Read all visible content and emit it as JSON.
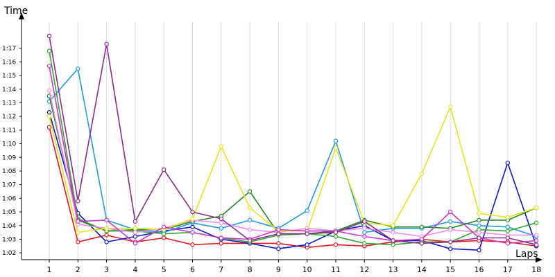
{
  "chart_data": {
    "type": "line",
    "xlabel": "Laps",
    "ylabel": "Time",
    "x": [
      1,
      2,
      3,
      4,
      5,
      6,
      7,
      8,
      9,
      10,
      11,
      12,
      13,
      14,
      15,
      16,
      17,
      18
    ],
    "ylim": [
      1.5,
      19.0
    ],
    "yticks": [
      {
        "value": 2,
        "label": "1:02"
      },
      {
        "value": 3,
        "label": "1:03"
      },
      {
        "value": 4,
        "label": "1:04"
      },
      {
        "value": 5,
        "label": "1:05"
      },
      {
        "value": 6,
        "label": "1:06"
      },
      {
        "value": 7,
        "label": "1:07"
      },
      {
        "value": 8,
        "label": "1:08"
      },
      {
        "value": 9,
        "label": "1:09"
      },
      {
        "value": 10,
        "label": "1:10"
      },
      {
        "value": 11,
        "label": "1:11"
      },
      {
        "value": 12,
        "label": "1:12"
      },
      {
        "value": 13,
        "label": "1:13"
      },
      {
        "value": 14,
        "label": "1:14"
      },
      {
        "value": 15,
        "label": "1:15"
      },
      {
        "value": 16,
        "label": "1:16"
      },
      {
        "value": 17,
        "label": "1:17"
      }
    ],
    "grid": {
      "vertical": true,
      "horizontal": false
    },
    "legend": "none",
    "series": [
      {
        "color": "#e8151d",
        "values": [
          11.2,
          2.8,
          3.3,
          2.8,
          3.1,
          2.6,
          2.7,
          2.7,
          2.7,
          2.4,
          2.6,
          2.5,
          2.8,
          3.0,
          2.8,
          2.9,
          2.8,
          2.5
        ]
      },
      {
        "color": "#0a14c8",
        "values": [
          12.3,
          4.9,
          2.8,
          3.2,
          3.6,
          3.9,
          3.0,
          2.7,
          2.3,
          2.6,
          3.6,
          4.0,
          2.9,
          2.9,
          2.3,
          2.2,
          8.6,
          2.5
        ]
      },
      {
        "color": "#1e9be8",
        "values": [
          13.1,
          15.5,
          4.4,
          3.7,
          3.5,
          4.2,
          3.8,
          4.4,
          3.8,
          5.1,
          10.2,
          3.5,
          3.8,
          3.8,
          4.3,
          4.0,
          3.9,
          3.2
        ]
      },
      {
        "color": "#2ea82e",
        "values": [
          16.8,
          4.5,
          3.6,
          3.6,
          3.4,
          3.5,
          3.1,
          2.8,
          3.3,
          3.4,
          3.2,
          2.7,
          2.6,
          2.8,
          2.8,
          3.7,
          3.6,
          4.2
        ]
      },
      {
        "color": "#238a23",
        "values": [
          13.5,
          4.4,
          3.6,
          3.7,
          3.7,
          4.3,
          4.7,
          6.5,
          3.4,
          3.4,
          3.6,
          4.4,
          3.9,
          3.9,
          3.8,
          4.4,
          4.4,
          5.3
        ]
      },
      {
        "color": "#f08cf0",
        "values": [
          13.9,
          4.1,
          3.8,
          3.5,
          3.8,
          4.4,
          4.2,
          3.7,
          3.5,
          3.8,
          3.6,
          3.8,
          3.5,
          3.2,
          3.7,
          3.5,
          3.3,
          3.3
        ]
      },
      {
        "color": "#e4e41c",
        "values": [
          12.0,
          3.5,
          3.8,
          3.8,
          3.7,
          4.5,
          9.8,
          5.3,
          3.6,
          3.6,
          9.7,
          4.2,
          4.0,
          7.8,
          12.7,
          4.9,
          4.6,
          5.3
        ]
      },
      {
        "color": "#cc33cc",
        "values": [
          15.7,
          4.3,
          4.4,
          2.7,
          3.9,
          3.5,
          3.1,
          3.0,
          3.7,
          3.6,
          3.6,
          3.2,
          2.9,
          3.0,
          5.0,
          3.1,
          2.7,
          2.9
        ]
      },
      {
        "color": "#8c2a8c",
        "values": [
          17.9,
          5.8,
          17.3,
          4.3,
          8.1,
          5.0,
          4.5,
          2.9,
          3.4,
          3.4,
          3.5,
          4.3,
          2.9,
          2.7,
          2.8,
          3.1,
          3.1,
          2.6
        ]
      }
    ]
  }
}
